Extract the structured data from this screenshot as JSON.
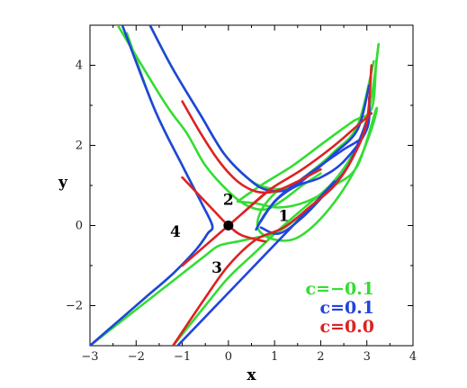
{
  "chart_data": {
    "type": "line",
    "title": "",
    "xlabel": "x",
    "ylabel": "y",
    "xlim": [
      -3,
      4
    ],
    "ylim": [
      -3,
      5
    ],
    "xticks": [
      -3,
      -2,
      -1,
      0,
      1,
      2,
      3,
      4
    ],
    "yticks": [
      -2,
      0,
      2,
      4
    ],
    "grid": false,
    "legend_position": "bottom-right",
    "series": [
      {
        "name": "c=−0.1",
        "color": "#33dd33",
        "curves": [
          {
            "x": [
              -1.2,
              -0.5,
              0.0,
              0.6,
              1.1,
              1.7,
              2.2,
              2.6,
              2.9,
              3.1,
              3.25,
              3.2,
              3.1,
              2.7,
              2.1,
              1.4,
              0.7,
              0.2
            ],
            "y": [
              -3.0,
              -2.0,
              -1.3,
              -0.65,
              -0.1,
              0.5,
              1.0,
              1.6,
              2.3,
              3.2,
              4.5,
              4.0,
              2.9,
              2.6,
              2.1,
              1.5,
              1.0,
              0.6
            ]
          },
          {
            "x": [
              0.2,
              0.6,
              1.1,
              1.7,
              2.3,
              2.8,
              3.2,
              3.1,
              2.7,
              2.1,
              1.5,
              1.0,
              0.65,
              0.7,
              1.0,
              1.2
            ],
            "y": [
              0.6,
              0.55,
              0.45,
              0.6,
              1.0,
              1.5,
              2.9,
              2.4,
              1.3,
              0.3,
              -0.3,
              -0.35,
              -0.1,
              0.35,
              0.8,
              0.9
            ]
          },
          {
            "x": [
              -3.0,
              -2.5,
              -2.0,
              -1.5,
              -1.0,
              -0.5,
              -0.2,
              0.2,
              0.6,
              1.0,
              1.4,
              1.7
            ],
            "y": [
              -3.0,
              -2.55,
              -2.1,
              -1.65,
              -1.2,
              -0.75,
              -0.5,
              -0.4,
              -0.3,
              -0.2,
              0.1,
              0.4
            ]
          },
          {
            "x": [
              -2.4,
              -1.4,
              -0.9,
              -0.5,
              0.0,
              0.4,
              0.8,
              1.2,
              1.6,
              2.0
            ],
            "y": [
              5.0,
              3.1,
              2.3,
              1.5,
              0.85,
              0.5,
              0.4,
              0.65,
              1.0,
              1.3
            ]
          },
          {
            "x": [
              -1.7,
              -1.2,
              -0.6,
              -0.1,
              0.4,
              0.8,
              1.3,
              1.8,
              2.3,
              2.8,
              3.15
            ],
            "y": [
              5.0,
              3.9,
              2.75,
              1.8,
              1.2,
              0.95,
              0.95,
              1.35,
              1.85,
              2.5,
              4.1
            ]
          },
          {
            "x": [
              -3.0,
              -2.4,
              -1.8,
              -1.2,
              -0.7,
              -0.45,
              -0.35,
              -0.6,
              -1.0,
              -1.6,
              -2.2
            ],
            "y": [
              -3.0,
              -2.4,
              -1.8,
              -1.2,
              -0.6,
              -0.2,
              0.0,
              0.6,
              1.5,
              2.9,
              4.8
            ]
          }
        ]
      },
      {
        "name": "c=0.1",
        "color": "#2244dd",
        "curves": [
          {
            "x": [
              -3.0,
              -2.4,
              -1.8,
              -1.2,
              -0.7,
              -0.45,
              -0.35,
              -0.6,
              -1.0,
              -1.6,
              -2.3
            ],
            "y": [
              -3.0,
              -2.4,
              -1.8,
              -1.2,
              -0.6,
              -0.2,
              0.0,
              0.6,
              1.5,
              2.9,
              5.0
            ]
          },
          {
            "x": [
              -1.7,
              -1.2,
              -0.6,
              -0.1,
              0.4,
              0.8,
              1.3,
              1.8,
              2.3,
              2.8,
              3.05
            ],
            "y": [
              5.0,
              3.9,
              2.75,
              1.8,
              1.2,
              0.9,
              0.9,
              1.3,
              1.8,
              2.4,
              3.5
            ]
          },
          {
            "x": [
              0.7,
              1.1,
              1.6,
              2.1,
              2.6,
              3.0,
              2.9,
              2.5,
              2.0,
              1.4,
              1.0,
              0.7
            ],
            "y": [
              -0.05,
              -0.2,
              0.2,
              0.8,
              1.5,
              2.6,
              2.2,
              1.9,
              1.5,
              1.0,
              0.6,
              0.1
            ]
          },
          {
            "x": [
              0.6,
              0.8,
              1.1,
              1.5,
              2.0,
              2.5,
              3.0,
              3.05
            ],
            "y": [
              -0.1,
              0.3,
              0.7,
              1.0,
              1.2,
              1.6,
              2.4,
              3.2
            ]
          },
          {
            "x": [
              -1.1,
              -0.6,
              -0.1,
              0.4,
              0.9,
              1.4,
              1.9,
              2.3
            ],
            "y": [
              -3.0,
              -2.4,
              -1.8,
              -1.2,
              -0.6,
              0.0,
              0.6,
              1.1
            ]
          }
        ]
      },
      {
        "name": "c=0.0",
        "color": "#dd2222",
        "curves": [
          {
            "x": [
              -1.0,
              -0.3,
              0.0,
              0.3,
              0.9
            ],
            "y": [
              -1.0,
              -0.3,
              0.0,
              0.3,
              0.9
            ]
          },
          {
            "x": [
              -1.0,
              -0.3,
              0.0,
              0.3,
              0.8
            ],
            "y": [
              1.2,
              0.35,
              0.0,
              -0.25,
              -0.4
            ]
          },
          {
            "x": [
              -1.2,
              -0.5,
              0.0,
              0.6,
              1.2,
              1.8,
              2.3,
              2.7,
              3.0,
              3.1
            ],
            "y": [
              -3.0,
              -1.8,
              -1.0,
              -0.35,
              -0.05,
              0.5,
              1.0,
              1.7,
              2.6,
              4.0
            ]
          },
          {
            "x": [
              3.1,
              2.8,
              2.3,
              1.6,
              0.9,
              0.3
            ],
            "y": [
              2.8,
              2.5,
              2.0,
              1.4,
              0.9,
              0.3
            ]
          },
          {
            "x": [
              -1.0,
              -0.6,
              -0.2,
              0.2,
              0.6,
              1.0,
              1.5,
              2.0
            ],
            "y": [
              3.1,
              2.3,
              1.6,
              1.1,
              0.85,
              0.85,
              1.1,
              1.4
            ]
          }
        ]
      }
    ],
    "saddle_point": {
      "x": 0,
      "y": 0
    },
    "annotations": [
      {
        "text": "1",
        "x": 1.2,
        "y": 0.25
      },
      {
        "text": "2",
        "x": 0.0,
        "y": 0.65
      },
      {
        "text": "3",
        "x": -0.25,
        "y": -1.05
      },
      {
        "text": "4",
        "x": -1.15,
        "y": -0.15
      }
    ],
    "legend": [
      {
        "text": "c=−0.1",
        "color": "#33dd33"
      },
      {
        "text": "c=0.1",
        "color": "#2244dd"
      },
      {
        "text": "c=0.0",
        "color": "#dd2222"
      }
    ]
  }
}
